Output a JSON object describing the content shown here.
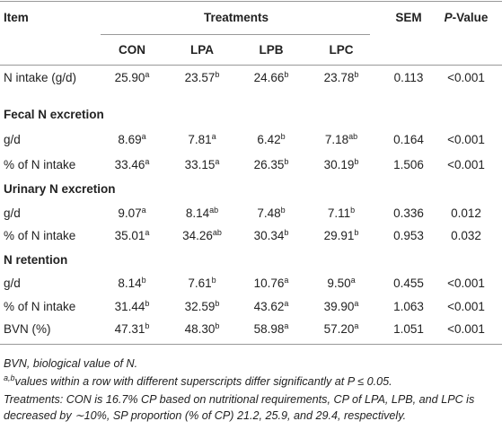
{
  "table": {
    "header": {
      "item": "Item",
      "treatments": "Treatments",
      "sem": "SEM",
      "p_value": {
        "italic": "P",
        "rest": "-Value"
      },
      "groups": [
        "CON",
        "LPA",
        "LPB",
        "LPC"
      ]
    },
    "rows": [
      {
        "label": "N intake (g/d)",
        "cells": [
          {
            "v": "25.90",
            "sup": "a"
          },
          {
            "v": "23.57",
            "sup": "b"
          },
          {
            "v": "24.66",
            "sup": "b"
          },
          {
            "v": "23.78",
            "sup": "b"
          }
        ],
        "sem": "0.113",
        "p": "<0.001"
      },
      {
        "section": "Fecal N excretion"
      },
      {
        "label": "g/d",
        "cells": [
          {
            "v": "8.69",
            "sup": "a"
          },
          {
            "v": "7.81",
            "sup": "a"
          },
          {
            "v": "6.42",
            "sup": "b"
          },
          {
            "v": "7.18",
            "sup": "ab"
          }
        ],
        "sem": "0.164",
        "p": "<0.001"
      },
      {
        "label": "% of N intake",
        "cells": [
          {
            "v": "33.46",
            "sup": "a"
          },
          {
            "v": "33.15",
            "sup": "a"
          },
          {
            "v": "26.35",
            "sup": "b"
          },
          {
            "v": "30.19",
            "sup": "b"
          }
        ],
        "sem": "1.506",
        "p": "<0.001"
      },
      {
        "section": "Urinary N excretion"
      },
      {
        "label": "g/d",
        "cells": [
          {
            "v": "9.07",
            "sup": "a"
          },
          {
            "v": "8.14",
            "sup": "ab"
          },
          {
            "v": "7.48",
            "sup": "b"
          },
          {
            "v": "7.11",
            "sup": "b"
          }
        ],
        "sem": "0.336",
        "p": "0.012"
      },
      {
        "label": "% of N intake",
        "cells": [
          {
            "v": "35.01",
            "sup": "a"
          },
          {
            "v": "34.26",
            "sup": "ab"
          },
          {
            "v": "30.34",
            "sup": "b"
          },
          {
            "v": "29.91",
            "sup": "b"
          }
        ],
        "sem": "0.953",
        "p": "0.032"
      },
      {
        "section": "N retention"
      },
      {
        "label": "g/d",
        "cells": [
          {
            "v": "8.14",
            "sup": "b"
          },
          {
            "v": "7.61",
            "sup": "b"
          },
          {
            "v": "10.76",
            "sup": "a"
          },
          {
            "v": "9.50",
            "sup": "a"
          }
        ],
        "sem": "0.455",
        "p": "<0.001"
      },
      {
        "label": "% of N intake",
        "cells": [
          {
            "v": "31.44",
            "sup": "b"
          },
          {
            "v": "32.59",
            "sup": "b"
          },
          {
            "v": "43.62",
            "sup": "a"
          },
          {
            "v": "39.90",
            "sup": "a"
          }
        ],
        "sem": "1.063",
        "p": "<0.001"
      },
      {
        "label": "BVN (%)",
        "cells": [
          {
            "v": "47.31",
            "sup": "b"
          },
          {
            "v": "48.30",
            "sup": "b"
          },
          {
            "v": "58.98",
            "sup": "a"
          },
          {
            "v": "57.20",
            "sup": "a"
          }
        ],
        "sem": "1.051",
        "p": "<0.001"
      }
    ]
  },
  "footnotes": {
    "bvn": "BVN, biological value of N.",
    "sig": {
      "sup": "a,b",
      "text": "values within a row with different superscripts differ significantly at P ≤ 0.05."
    },
    "treatments": "Treatments: CON is 16.7% CP based on nutritional requirements, CP of LPA, LPB, and LPC is decreased by ∼10%, SP proportion (% of CP) 21.2, 25.9, and 29.4, respectively."
  }
}
